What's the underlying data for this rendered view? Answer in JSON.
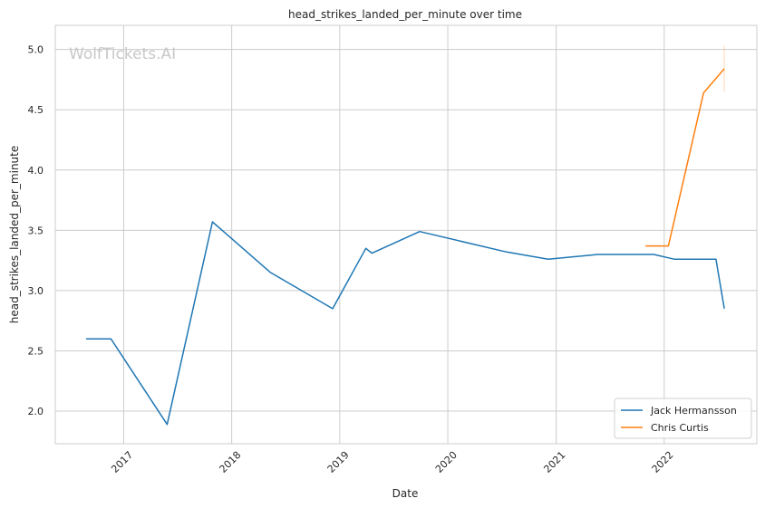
{
  "chart_data": {
    "type": "line",
    "title": "head_strikes_landed_per_minute over time",
    "xlabel": "Date",
    "ylabel": "head_strikes_landed_per_minute",
    "watermark": "WolfTickets.AI",
    "xlim": [
      "2016-05-15",
      "2022-11-10"
    ],
    "ylim": [
      1.73,
      5.2
    ],
    "x_ticks": [
      "2017",
      "2018",
      "2019",
      "2020",
      "2021",
      "2022"
    ],
    "y_ticks": [
      "2.0",
      "2.5",
      "3.0",
      "3.5",
      "4.0",
      "4.5",
      "5.0"
    ],
    "grid": true,
    "legend_position": "bottom-right",
    "series": [
      {
        "name": "Jack Hermansson",
        "color": "#1f77b4",
        "points": [
          {
            "x": "2016-08-27",
            "y": 2.6
          },
          {
            "x": "2016-11-19",
            "y": 2.6
          },
          {
            "x": "2017-05-28",
            "y": 1.89
          },
          {
            "x": "2017-10-28",
            "y": 3.57
          },
          {
            "x": "2018-05-12",
            "y": 3.15
          },
          {
            "x": "2018-12-08",
            "y": 2.85
          },
          {
            "x": "2019-03-30",
            "y": 3.35
          },
          {
            "x": "2019-04-20",
            "y": 3.31
          },
          {
            "x": "2019-09-28",
            "y": 3.49
          },
          {
            "x": "2020-07-18",
            "y": 3.32
          },
          {
            "x": "2020-12-05",
            "y": 3.26
          },
          {
            "x": "2021-05-22",
            "y": 3.3
          },
          {
            "x": "2021-11-27",
            "y": 3.3
          },
          {
            "x": "2022-02-05",
            "y": 3.26
          },
          {
            "x": "2022-06-25",
            "y": 3.26
          },
          {
            "x": "2022-07-23",
            "y": 2.85
          }
        ]
      },
      {
        "name": "Chris Curtis",
        "color": "#ff7f0e",
        "points": [
          {
            "x": "2021-10-30",
            "y": 3.37
          },
          {
            "x": "2022-01-15",
            "y": 3.37
          },
          {
            "x": "2022-05-14",
            "y": 4.64
          },
          {
            "x": "2022-07-23",
            "y": 4.84
          }
        ],
        "error_band": {
          "x": "2022-07-23",
          "low": 4.65,
          "high": 5.03
        }
      }
    ]
  }
}
